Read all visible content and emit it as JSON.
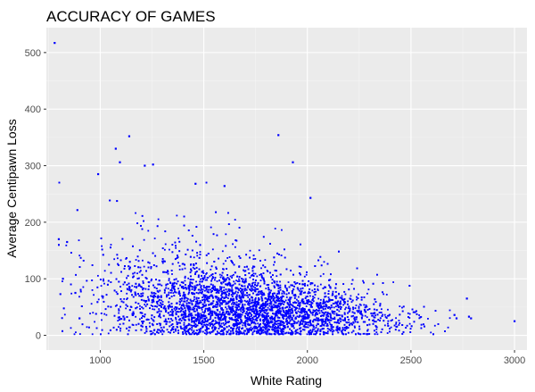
{
  "chart_data": {
    "type": "scatter",
    "title": "ACCURACY OF GAMES",
    "xlabel": "White Rating",
    "ylabel": "Average Centipawn Loss",
    "xlim": [
      740,
      3060
    ],
    "ylim": [
      -26,
      544
    ],
    "x_ticks": [
      1000,
      1500,
      2000,
      2500,
      3000
    ],
    "y_ticks": [
      0,
      100,
      200,
      300,
      400,
      500
    ],
    "grid": true,
    "legend": "none",
    "point_color": "#0000ff",
    "panel_background": "#ebebeb",
    "gridline_color": "#ffffff",
    "notable_points": [
      {
        "x": 780,
        "y": 517
      },
      {
        "x": 1140,
        "y": 352
      },
      {
        "x": 1075,
        "y": 330
      },
      {
        "x": 1215,
        "y": 300
      },
      {
        "x": 1255,
        "y": 302
      },
      {
        "x": 1095,
        "y": 306
      },
      {
        "x": 990,
        "y": 285
      },
      {
        "x": 1860,
        "y": 354
      },
      {
        "x": 1930,
        "y": 306
      },
      {
        "x": 1600,
        "y": 264
      },
      {
        "x": 1460,
        "y": 268
      },
      {
        "x": 2015,
        "y": 243
      },
      {
        "x": 3000,
        "y": 25
      },
      {
        "x": 2780,
        "y": 33
      },
      {
        "x": 2790,
        "y": 30
      },
      {
        "x": 2770,
        "y": 65
      },
      {
        "x": 2720,
        "y": 30
      },
      {
        "x": 2710,
        "y": 36
      },
      {
        "x": 800,
        "y": 170
      },
      {
        "x": 840,
        "y": 165
      },
      {
        "x": 820,
        "y": 100
      },
      {
        "x": 880,
        "y": 75
      },
      {
        "x": 900,
        "y": 30
      }
    ],
    "distribution": {
      "x_range": [
        780,
        3000
      ],
      "x_center": 1700,
      "x_spread": 330,
      "y_center": 50,
      "y_spread": 35,
      "approx_point_count": 6000
    }
  }
}
